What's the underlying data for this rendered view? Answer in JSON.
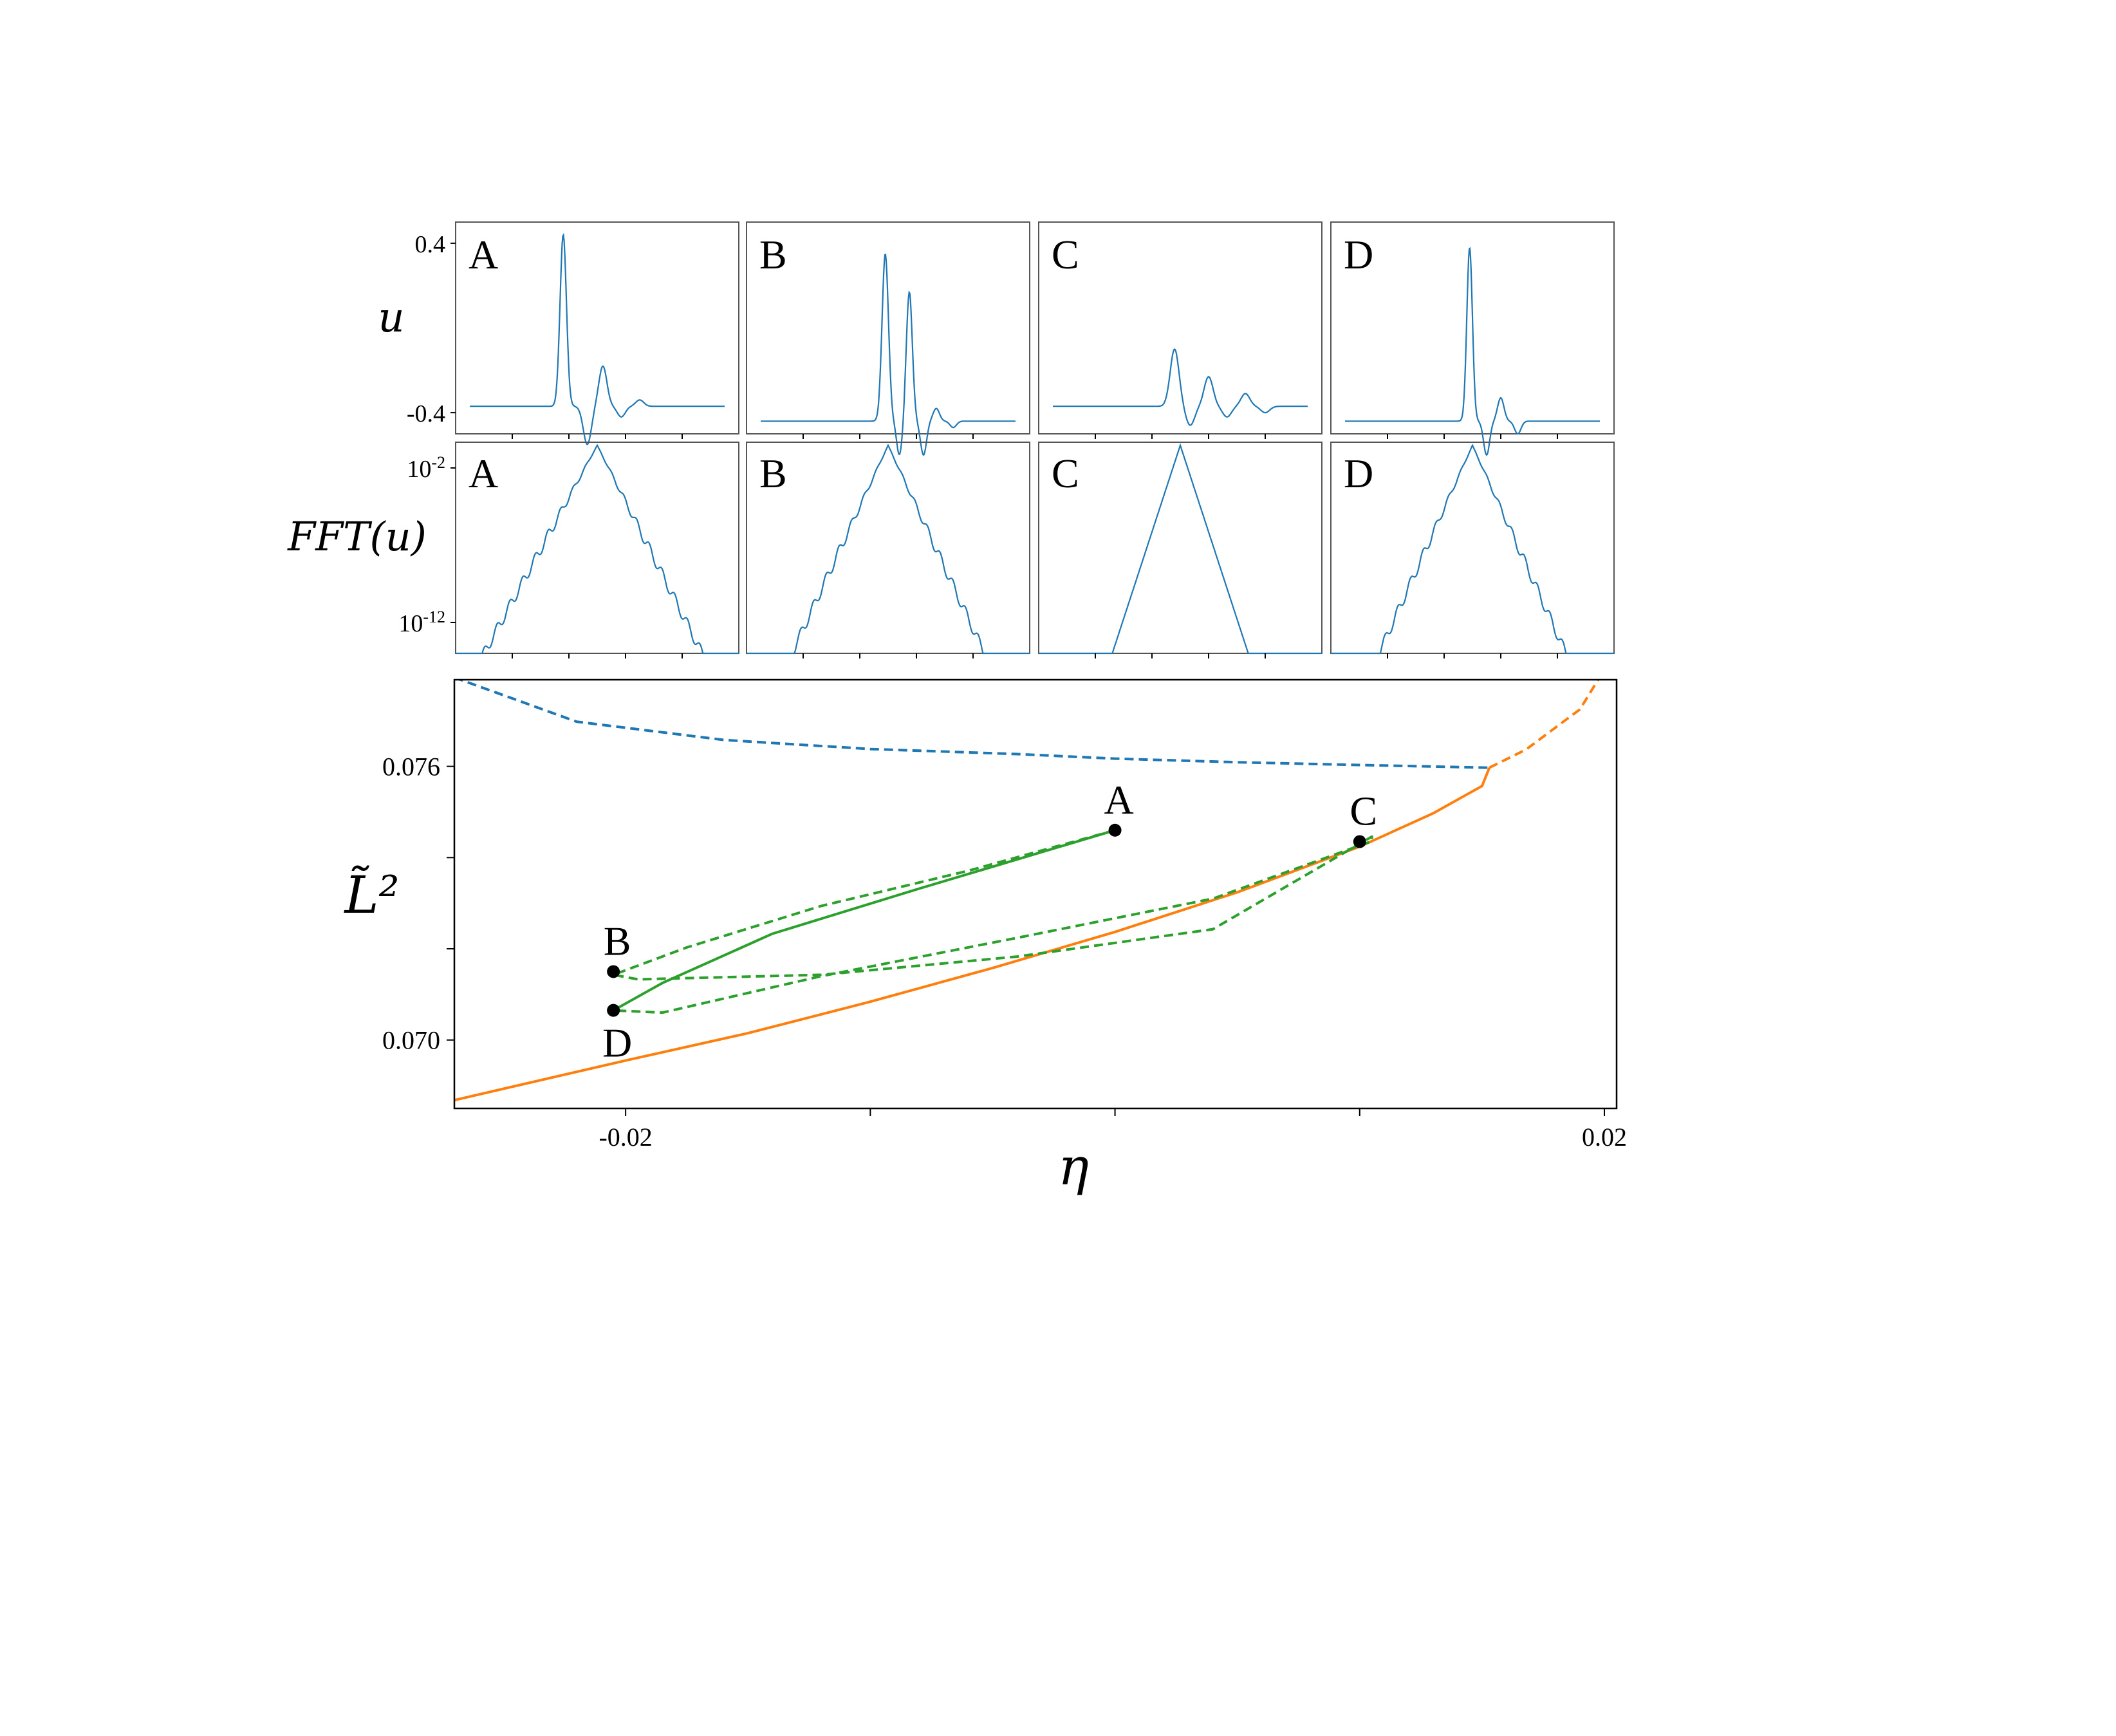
{
  "figure": {
    "u_row": {
      "ylabel": "u",
      "yticks": [
        {
          "value": 0.4,
          "label": "0.4"
        },
        {
          "value": -0.4,
          "label": "-0.4"
        }
      ]
    },
    "fft_row": {
      "ylabel": "FFT(u)",
      "yticks": [
        {
          "base": "10",
          "exp": "-2"
        },
        {
          "base": "10",
          "exp": "-12"
        }
      ]
    },
    "panel_letters": [
      "A",
      "B",
      "C",
      "D"
    ]
  },
  "chart_data": [
    {
      "type": "line",
      "title": "",
      "panels": [
        {
          "label": "A",
          "baseline": -0.37,
          "peaks": [
            {
              "x": 0.38,
              "y": 0.44,
              "w": 0.016
            },
            {
              "x": 0.465,
              "y": -0.55,
              "w": 0.02
            },
            {
              "x": 0.52,
              "y": -0.18,
              "w": 0.02
            },
            {
              "x": 0.585,
              "y": -0.42,
              "w": 0.02
            },
            {
              "x": 0.65,
              "y": -0.34,
              "w": 0.02
            }
          ]
        },
        {
          "label": "B",
          "baseline": -0.44,
          "peaks": [
            {
              "x": 0.49,
              "y": 0.35,
              "w": 0.016
            },
            {
              "x": 0.54,
              "y": -0.6,
              "w": 0.014
            },
            {
              "x": 0.575,
              "y": 0.17,
              "w": 0.015
            },
            {
              "x": 0.625,
              "y": -0.6,
              "w": 0.015
            },
            {
              "x": 0.67,
              "y": -0.38,
              "w": 0.016
            },
            {
              "x": 0.73,
              "y": -0.47,
              "w": 0.016
            }
          ]
        },
        {
          "label": "C",
          "baseline": -0.37,
          "peaks": [
            {
              "x": 0.48,
              "y": -0.1,
              "w": 0.022
            },
            {
              "x": 0.535,
              "y": -0.46,
              "w": 0.022
            },
            {
              "x": 0.6,
              "y": -0.23,
              "w": 0.022
            },
            {
              "x": 0.665,
              "y": -0.42,
              "w": 0.022
            },
            {
              "x": 0.73,
              "y": -0.31,
              "w": 0.022
            },
            {
              "x": 0.8,
              "y": -0.4,
              "w": 0.022
            }
          ]
        },
        {
          "label": "D",
          "baseline": -0.44,
          "peaks": [
            {
              "x": 0.49,
              "y": 0.38,
              "w": 0.014
            },
            {
              "x": 0.55,
              "y": -0.6,
              "w": 0.015
            },
            {
              "x": 0.6,
              "y": -0.33,
              "w": 0.016
            },
            {
              "x": 0.66,
              "y": -0.5,
              "w": 0.016
            }
          ]
        }
      ],
      "ylim": [
        -0.5,
        0.5
      ]
    },
    {
      "type": "line",
      "title": "",
      "yscale": "log",
      "ylim": [
        -13.6,
        0
      ],
      "panels": [
        {
          "label": "A",
          "peak": -0.2,
          "left_edge": 0.1,
          "right_edge": 0.87,
          "bottom": -13.6,
          "ripples": true
        },
        {
          "label": "B",
          "peak": -0.2,
          "left_edge": 0.16,
          "right_edge": 0.84,
          "bottom": -13.6,
          "ripples": true
        },
        {
          "label": "C",
          "peak": -0.2,
          "left_edge": 0.26,
          "right_edge": 0.74,
          "bottom": -13.6,
          "ripples": false
        },
        {
          "label": "D",
          "peak": -0.2,
          "left_edge": 0.17,
          "right_edge": 0.83,
          "bottom": -13.6,
          "ripples": true
        }
      ]
    },
    {
      "type": "line",
      "title": "",
      "xlabel": "η",
      "ylabel": "L̃²",
      "xlim": [
        -0.027,
        0.0205
      ],
      "ylim": [
        0.0685,
        0.0779
      ],
      "xticks": [
        {
          "value": -0.02,
          "label": "-0.02"
        },
        {
          "value": -0.01,
          "label": ""
        },
        {
          "value": 0.0,
          "label": ""
        },
        {
          "value": 0.01,
          "label": ""
        },
        {
          "value": 0.02,
          "label": "0.02"
        }
      ],
      "yticks": [
        {
          "value": 0.076,
          "label": "0.076"
        },
        {
          "value": 0.074,
          "label": ""
        },
        {
          "value": 0.072,
          "label": ""
        },
        {
          "value": 0.07,
          "label": "0.070"
        }
      ],
      "colors": {
        "blue": "#1f77b4",
        "orange": "#ff7f0e",
        "green": "#2ca02c"
      },
      "series": [
        {
          "style": "dashed",
          "color": "#1f77b4",
          "points": [
            [
              -0.027,
              0.07795
            ],
            [
              -0.022,
              0.07698
            ],
            [
              -0.016,
              0.07658
            ],
            [
              -0.01,
              0.07638
            ],
            [
              -0.004,
              0.07627
            ],
            [
              0.0,
              0.07617
            ],
            [
              0.005,
              0.07609
            ],
            [
              0.01,
              0.07603
            ],
            [
              0.0153,
              0.07597
            ]
          ]
        },
        {
          "style": "solid",
          "color": "#ff7f0e",
          "points": [
            [
              -0.027,
              0.06868
            ],
            [
              -0.02,
              0.06955
            ],
            [
              -0.015,
              0.07015
            ],
            [
              -0.01,
              0.07084
            ],
            [
              -0.005,
              0.07158
            ],
            [
              0.0,
              0.07237
            ],
            [
              0.005,
              0.07324
            ],
            [
              0.01,
              0.07424
            ],
            [
              0.013,
              0.07497
            ],
            [
              0.015,
              0.07557
            ],
            [
              0.0153,
              0.07597
            ]
          ]
        },
        {
          "style": "dashed",
          "color": "#ff7f0e",
          "points": [
            [
              0.0153,
              0.07597
            ],
            [
              0.0168,
              0.07637
            ],
            [
              0.018,
              0.07685
            ],
            [
              0.019,
              0.07725
            ],
            [
              0.0198,
              0.07795
            ]
          ]
        },
        {
          "style": "solid",
          "color": "#2ca02c",
          "points": [
            [
              0.0,
              0.0746
            ],
            [
              -0.008,
              0.07332
            ],
            [
              -0.014,
              0.07233
            ],
            [
              -0.0185,
              0.07125
            ],
            [
              -0.0205,
              0.07065
            ]
          ]
        },
        {
          "style": "dashed",
          "color": "#2ca02c",
          "points": [
            [
              0.0,
              0.0746
            ],
            [
              -0.006,
              0.07371
            ],
            [
              -0.012,
              0.07294
            ],
            [
              -0.0175,
              0.07203
            ],
            [
              -0.0205,
              0.07143
            ],
            [
              -0.0195,
              0.07133
            ],
            [
              -0.012,
              0.07143
            ],
            [
              -0.004,
              0.07183
            ],
            [
              0.004,
              0.07243
            ],
            [
              0.0105,
              0.07446
            ],
            [
              0.0105,
              0.07436
            ],
            [
              0.004,
              0.0731
            ],
            [
              -0.004,
              0.07224
            ],
            [
              -0.012,
              0.0714
            ],
            [
              -0.0185,
              0.0706
            ],
            [
              -0.0205,
              0.07065
            ]
          ]
        }
      ],
      "points": [
        {
          "label": "A",
          "x": 0.0,
          "y": 0.0746,
          "label_pos": "above"
        },
        {
          "label": "B",
          "x": -0.0205,
          "y": 0.0715,
          "label_pos": "above"
        },
        {
          "label": "C",
          "x": 0.01,
          "y": 0.07435,
          "label_pos": "above"
        },
        {
          "label": "D",
          "x": -0.0205,
          "y": 0.07065,
          "label_pos": "below"
        }
      ]
    }
  ]
}
